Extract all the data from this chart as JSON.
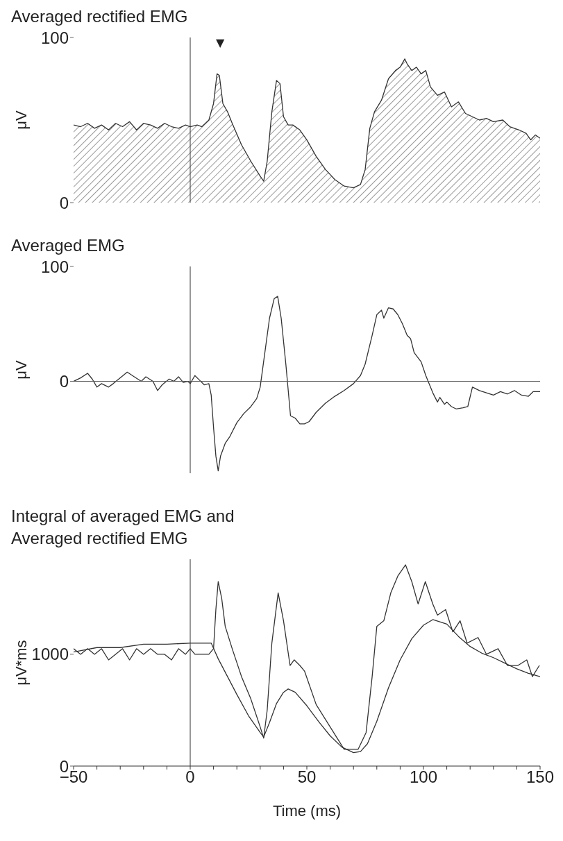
{
  "chart_data": [
    {
      "type": "area",
      "title": "Averaged rectified EMG",
      "ylabel": "μV",
      "xlim": [
        -50,
        150
      ],
      "ylim": [
        0,
        100
      ],
      "yticks": [
        0,
        100
      ],
      "tick_labels": "y",
      "grid": false,
      "legend": false,
      "ref_lines": [
        {
          "axis": "x",
          "value": 0,
          "color": "#333333"
        }
      ],
      "annotations": [
        "▼"
      ],
      "series": [
        {
          "color": "#333333",
          "x": [
            -50,
            -47,
            -44,
            -41,
            -38,
            -35,
            -32,
            -29,
            -26,
            -23,
            -20,
            -17,
            -14,
            -11,
            -8,
            -5,
            -2,
            0,
            3,
            5,
            8,
            10,
            11.5,
            12.5,
            14,
            16,
            18,
            22,
            26,
            30,
            31.5,
            33,
            35,
            37,
            38.5,
            40,
            42,
            44,
            47,
            50,
            54,
            58,
            62,
            66,
            70,
            73,
            75,
            77,
            79,
            82,
            85,
            88,
            90,
            92,
            93,
            95,
            97,
            99,
            101,
            103,
            106,
            109,
            112,
            115,
            118,
            121,
            124,
            127,
            130,
            134,
            137,
            141,
            144,
            146,
            148,
            150
          ],
          "values": [
            47,
            46,
            48,
            45,
            47,
            44,
            48,
            46,
            49,
            44,
            48,
            47,
            45,
            48,
            46,
            45,
            47,
            46,
            47,
            46,
            50,
            60,
            78,
            77,
            60,
            55,
            48,
            35,
            25,
            16,
            13,
            25,
            55,
            74,
            72,
            52,
            47,
            47,
            44,
            38,
            28,
            20,
            14,
            10,
            9,
            11,
            20,
            45,
            55,
            62,
            75,
            80,
            82,
            87,
            84,
            80,
            82,
            78,
            80,
            70,
            65,
            67,
            58,
            61,
            54,
            52,
            50,
            51,
            49,
            50,
            46,
            44,
            42,
            38,
            41,
            39
          ]
        }
      ]
    },
    {
      "type": "line",
      "title": "Averaged EMG",
      "ylabel": "μV",
      "xlim": [
        -50,
        150
      ],
      "ylim": [
        -80,
        100
      ],
      "yticks": [
        0,
        100
      ],
      "tick_labels": "y",
      "grid": false,
      "legend": false,
      "ref_lines": [
        {
          "axis": "x",
          "value": 0,
          "color": "#333333"
        },
        {
          "axis": "y",
          "value": 0,
          "color": "#555555"
        }
      ],
      "series": [
        {
          "color": "#333333",
          "x": [
            -50,
            -47,
            -44,
            -42,
            -40,
            -38,
            -35,
            -33,
            -30,
            -27,
            -24,
            -21,
            -19,
            -16,
            -14,
            -12,
            -9,
            -7,
            -5,
            -3,
            -1,
            0,
            2,
            4,
            6,
            8,
            9,
            10,
            11,
            12,
            13,
            15,
            17,
            20,
            23,
            26,
            28.5,
            30,
            32,
            34,
            36,
            37.5,
            39,
            41,
            43,
            45,
            47,
            49,
            51,
            54,
            58,
            62,
            66,
            70,
            73,
            75,
            78,
            80,
            82,
            83,
            85,
            87,
            89,
            91,
            93,
            94.5,
            96,
            97.5,
            99,
            101,
            103,
            104,
            106,
            107,
            109,
            110,
            112,
            114,
            117,
            119,
            121,
            124,
            127,
            130,
            133,
            136,
            139,
            142,
            145,
            147,
            150
          ],
          "values": [
            0,
            3,
            7,
            2,
            -5,
            -2,
            -5,
            -2,
            3,
            8,
            4,
            0,
            4,
            0,
            -8,
            -3,
            2,
            0,
            4,
            -1,
            0,
            -2,
            5,
            1,
            -3,
            -2,
            -12,
            -40,
            -65,
            -78,
            -65,
            -54,
            -48,
            -36,
            -28,
            -22,
            -15,
            -5,
            25,
            55,
            72,
            74,
            55,
            15,
            -30,
            -32,
            -37,
            -37,
            -35,
            -27,
            -19,
            -13,
            -8,
            -2,
            5,
            15,
            40,
            58,
            62,
            55,
            64,
            63,
            58,
            50,
            40,
            37,
            25,
            21,
            17,
            5,
            -5,
            -10,
            -18,
            -14,
            -20,
            -18,
            -22,
            -24,
            -23,
            -22,
            -5,
            -8,
            -10,
            -12,
            -9,
            -11,
            -8,
            -12,
            -13,
            -9,
            -9
          ]
        }
      ]
    },
    {
      "type": "line",
      "title": "Integral of averaged EMG and Averaged rectified EMG",
      "xlabel": "Time (ms)",
      "ylabel": "μV*ms",
      "xlim": [
        -50,
        150
      ],
      "ylim": [
        0,
        1850
      ],
      "yticks": [
        0,
        1000
      ],
      "xticks": [
        -50,
        {
          "value": -40,
          "label": null
        },
        {
          "value": -30,
          "label": null
        },
        {
          "value": -20,
          "label": null
        },
        {
          "value": -10,
          "label": null
        },
        0,
        {
          "value": 10,
          "label": null
        },
        {
          "value": 20,
          "label": null
        },
        {
          "value": 30,
          "label": null
        },
        {
          "value": 40,
          "label": null
        },
        50,
        {
          "value": 60,
          "label": null
        },
        {
          "value": 70,
          "label": null
        },
        {
          "value": 80,
          "label": null
        },
        {
          "value": 90,
          "label": null
        },
        100,
        {
          "value": 110,
          "label": null
        },
        {
          "value": 120,
          "label": null
        },
        {
          "value": 130,
          "label": null
        },
        {
          "value": 140,
          "label": null
        },
        150
      ],
      "grid": false,
      "legend": false,
      "ref_lines": [
        {
          "axis": "x",
          "value": 0,
          "color": "#333333"
        }
      ],
      "series": [
        {
          "color": "#333333",
          "x": [
            -50,
            -47,
            -44,
            -41,
            -38,
            -35,
            -32,
            -29,
            -26,
            -23,
            -20,
            -17,
            -14,
            -11,
            -8,
            -5,
            -2,
            0,
            2,
            5,
            8,
            10,
            11,
            12,
            13.5,
            15,
            18,
            22,
            26,
            30,
            31.5,
            33,
            35,
            37.7,
            40,
            42.8,
            44.6,
            47,
            49,
            54,
            60,
            66,
            72,
            75.4,
            78,
            80,
            83,
            86,
            89,
            92.3,
            95,
            97.7,
            100.8,
            104,
            106,
            109.5,
            112.6,
            115.7,
            118.7,
            123.4,
            127,
            132,
            136,
            140.5,
            144.3,
            146.7,
            149.7
          ],
          "values": [
            1050,
            1000,
            1050,
            1000,
            1050,
            950,
            1000,
            1050,
            950,
            1050,
            1000,
            1050,
            1000,
            1000,
            950,
            1050,
            1000,
            1050,
            1000,
            1000,
            1000,
            1050,
            1400,
            1650,
            1500,
            1250,
            1050,
            800,
            600,
            350,
            250,
            500,
            1100,
            1550,
            1300,
            900,
            950,
            900,
            850,
            550,
            350,
            150,
            150,
            300,
            800,
            1250,
            1300,
            1550,
            1700,
            1800,
            1650,
            1450,
            1650,
            1450,
            1350,
            1400,
            1200,
            1300,
            1100,
            1150,
            1000,
            1050,
            900,
            900,
            950,
            800,
            900
          ]
        },
        {
          "color": "#333333",
          "x": [
            -50,
            -40,
            -30,
            -20,
            -10,
            0,
            9,
            12,
            16,
            20,
            25,
            30,
            31.5,
            34,
            37,
            40,
            42,
            45,
            50,
            55,
            60,
            65,
            70,
            73,
            76,
            80,
            85,
            90,
            95,
            100,
            104,
            110,
            115,
            120,
            125,
            130,
            135,
            140,
            145,
            150
          ],
          "values": [
            1020,
            1060,
            1060,
            1090,
            1090,
            1100,
            1100,
            960,
            800,
            640,
            450,
            300,
            260,
            390,
            560,
            660,
            690,
            660,
            540,
            400,
            270,
            170,
            120,
            130,
            200,
            400,
            700,
            950,
            1140,
            1260,
            1310,
            1270,
            1160,
            1070,
            1010,
            970,
            920,
            870,
            830,
            800
          ]
        }
      ]
    }
  ]
}
